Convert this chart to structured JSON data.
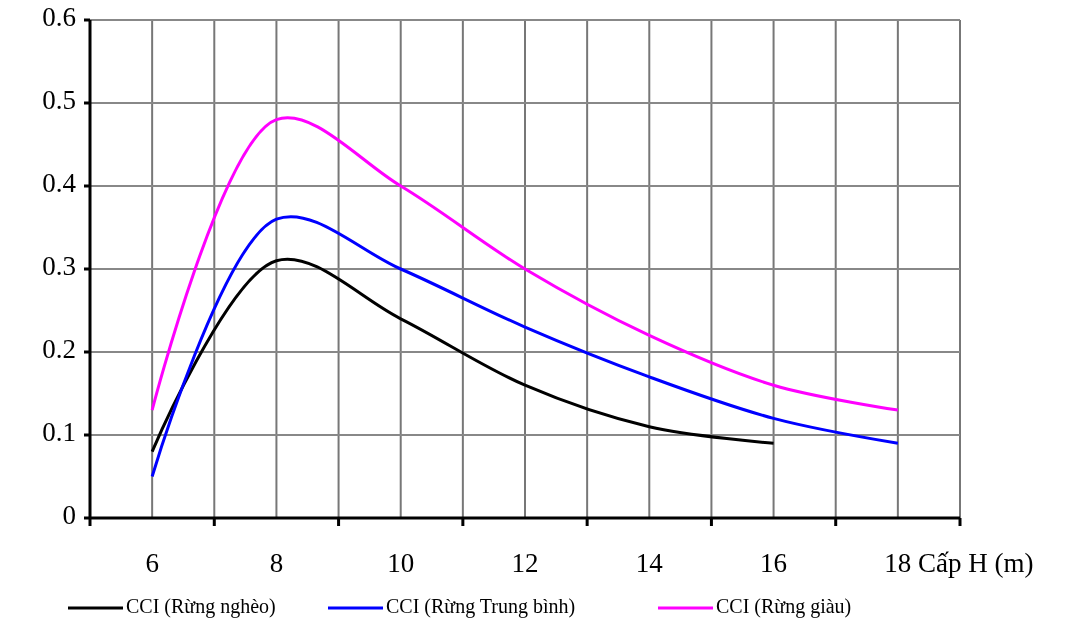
{
  "chart_data": {
    "type": "line",
    "xlabel": "Cấp H  (m)",
    "x": [
      6,
      8,
      10,
      12,
      14,
      16,
      18
    ],
    "series": [
      {
        "name": "CCI  (Rừng nghèo)",
        "color": "#000000",
        "values": [
          0.08,
          0.31,
          0.24,
          0.16,
          0.11,
          0.09,
          null
        ]
      },
      {
        "name": "CCI  (Rừng Trung bình)",
        "color": "#0000ff",
        "values": [
          0.05,
          0.36,
          0.3,
          0.23,
          0.17,
          0.12,
          0.09
        ]
      },
      {
        "name": "CCI  (Rừng giàu)",
        "color": "#ff00ff",
        "values": [
          0.13,
          0.48,
          0.4,
          0.3,
          0.22,
          0.16,
          0.13
        ]
      }
    ],
    "xlim": [
      5,
      19
    ],
    "xticks": [
      {
        "value": 5,
        "label": null
      },
      6,
      {
        "value": 7,
        "label": null
      },
      8,
      {
        "value": 9,
        "label": null
      },
      10,
      {
        "value": 11,
        "label": null
      },
      12,
      {
        "value": 13,
        "label": null
      },
      14,
      {
        "value": 15,
        "label": null
      },
      16,
      {
        "value": 17,
        "label": null
      },
      18,
      {
        "value": 19,
        "label": null
      }
    ],
    "ylim": [
      0,
      0.6
    ],
    "yticks": [
      0,
      0.1,
      0.2,
      0.3,
      0.4,
      0.5,
      0.6
    ],
    "grid": true,
    "legend": "bottom",
    "marker": "none",
    "line_style": "solid"
  }
}
